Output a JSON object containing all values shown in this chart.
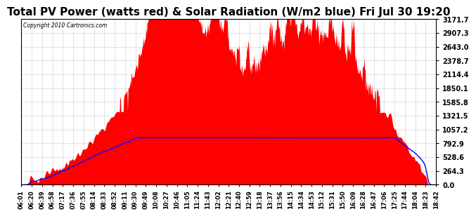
{
  "title": "Total PV Power (watts red) & Solar Radiation (W/m2 blue) Fri Jul 30 19:20",
  "copyright": "Copyright 2010 Cartronics.com",
  "background_color": "#ffffff",
  "plot_bg_color": "#ffffff",
  "grid_color": "#888888",
  "yticks": [
    0.0,
    264.3,
    528.6,
    792.9,
    1057.2,
    1321.5,
    1585.8,
    1850.1,
    2114.4,
    2378.7,
    2643.0,
    2907.3,
    3171.7
  ],
  "ymax": 3171.7,
  "ymin": 0.0,
  "pv_color": "#ff0000",
  "solar_color": "#0000ff",
  "title_fontsize": 11,
  "xtick_labels": [
    "06:01",
    "06:20",
    "06:39",
    "06:58",
    "07:17",
    "07:36",
    "07:55",
    "08:14",
    "08:33",
    "08:52",
    "09:11",
    "09:30",
    "09:49",
    "10:08",
    "10:27",
    "10:46",
    "11:05",
    "11:24",
    "11:43",
    "12:02",
    "12:21",
    "12:40",
    "12:59",
    "13:18",
    "13:37",
    "13:56",
    "14:15",
    "14:34",
    "14:53",
    "15:12",
    "15:31",
    "15:50",
    "16:09",
    "16:28",
    "16:47",
    "17:06",
    "17:25",
    "17:44",
    "18:04",
    "18:23",
    "18:42"
  ]
}
